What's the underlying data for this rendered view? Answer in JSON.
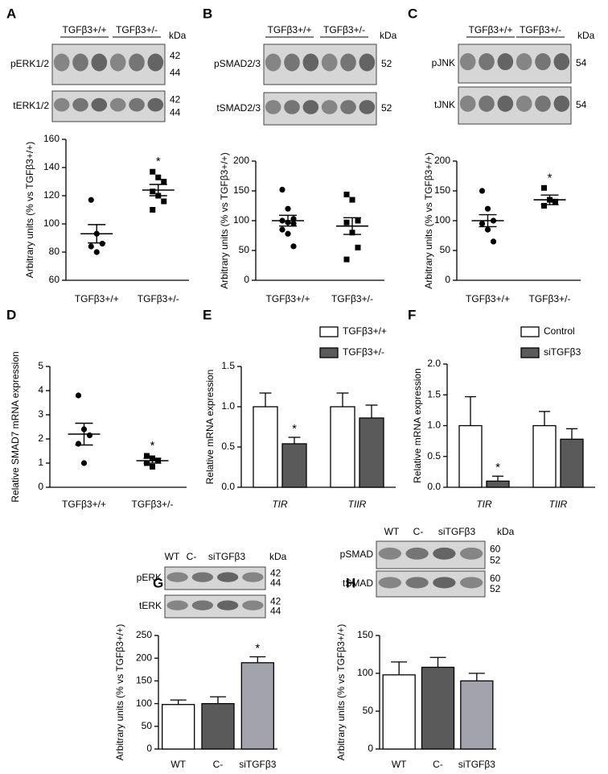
{
  "chart_data": [
    {
      "letter": "A",
      "type": "dot",
      "blot": {
        "groups": [
          "TGFβ3+/+",
          "TGFβ3+/-"
        ],
        "unit": "kDa",
        "rows": [
          {
            "label": "pERK1/2",
            "sizes": [
              42,
              44
            ]
          },
          {
            "label": "tERK1/2",
            "sizes": [
              42,
              44
            ]
          }
        ]
      },
      "ylabel": "Arbitrary units (% vs TGFβ3+/+)",
      "ylim": [
        60,
        160
      ],
      "yticks": [
        60,
        80,
        100,
        120,
        140,
        160
      ],
      "categories": [
        "TGFβ3+/+",
        "TGFβ3+/-"
      ],
      "groups": [
        {
          "marker": "circle",
          "values": [
            117,
            93,
            86,
            84,
            80
          ],
          "mean": 93,
          "sem": 6.5
        },
        {
          "marker": "square",
          "values": [
            137,
            133,
            130,
            123,
            120,
            116,
            110
          ],
          "mean": 124,
          "sem": 4
        }
      ],
      "marks": [
        null,
        "*"
      ]
    },
    {
      "letter": "B",
      "type": "dot",
      "blot": {
        "groups": [
          "TGFβ3+/+",
          "TGFβ3+/-"
        ],
        "unit": "kDa",
        "rows": [
          {
            "label": "pSMAD2/3",
            "sizes": [
              52
            ]
          },
          {
            "label": "tSMAD2/3",
            "sizes": [
              52
            ]
          }
        ]
      },
      "ylabel": "Arbitrary units (% vs TGFβ3+/+)",
      "ylim": [
        0,
        200
      ],
      "yticks": [
        0,
        50,
        100,
        150,
        200
      ],
      "categories": [
        "TGFβ3+/+",
        "TGFβ3+/-"
      ],
      "groups": [
        {
          "marker": "circle",
          "values": [
            152,
            120,
            103,
            100,
            97,
            95,
            85,
            78,
            57
          ],
          "mean": 100,
          "sem": 9
        },
        {
          "marker": "square",
          "values": [
            144,
            135,
            100,
            97,
            80,
            55,
            35
          ],
          "mean": 91,
          "sem": 14
        }
      ],
      "marks": [
        null,
        null
      ]
    },
    {
      "letter": "C",
      "type": "dot",
      "blot": {
        "groups": [
          "TGFβ3+/+",
          "TGFβ3+/-"
        ],
        "unit": "kDa",
        "rows": [
          {
            "label": "pJNK",
            "sizes": [
              54
            ]
          },
          {
            "label": "tJNK",
            "sizes": [
              54
            ]
          }
        ]
      },
      "ylabel": "Arbitrary units (% vs TGFβ3+/+)",
      "ylim": [
        0,
        200
      ],
      "yticks": [
        0,
        50,
        100,
        150,
        200
      ],
      "categories": [
        "TGFβ3+/+",
        "TGFβ3+/-"
      ],
      "groups": [
        {
          "marker": "circle",
          "values": [
            150,
            120,
            100,
            95,
            85,
            65
          ],
          "mean": 100,
          "sem": 10
        },
        {
          "marker": "square",
          "values": [
            155,
            135,
            132,
            125
          ],
          "mean": 135,
          "sem": 8
        }
      ],
      "marks": [
        null,
        "*"
      ]
    },
    {
      "letter": "D",
      "type": "dot",
      "ylabel": "Relative SMAD7 mRNA expression",
      "ylim": [
        0,
        5
      ],
      "yticks": [
        0,
        1,
        2,
        3,
        4,
        5
      ],
      "categories": [
        "TGFβ3+/+",
        "TGFβ3+/-"
      ],
      "groups": [
        {
          "marker": "circle",
          "values": [
            3.8,
            2.4,
            2.15,
            1.8,
            1.0
          ],
          "mean": 2.2,
          "sem": 0.45
        },
        {
          "marker": "square",
          "values": [
            1.3,
            1.2,
            1.1,
            1.0,
            0.85
          ],
          "mean": 1.1,
          "sem": 0.1
        }
      ],
      "marks": [
        null,
        "*"
      ]
    },
    {
      "letter": "E",
      "type": "bar",
      "italic_categories": true,
      "ylabel": "Relative mRNA expression",
      "ylim": [
        0,
        1.5
      ],
      "yticks": [
        {
          "value": 0,
          "label": "0.0"
        },
        0.5,
        {
          "value": 1,
          "label": "1.0"
        },
        1.5
      ],
      "categories": [
        "TIR",
        "TIIR"
      ],
      "series": [
        {
          "name": "TGFβ3+/+",
          "color": "#ffffff",
          "values": [
            1.0,
            1.0
          ],
          "errors": [
            0.17,
            0.17
          ],
          "marks": [
            null,
            null
          ]
        },
        {
          "name": "TGFβ3+/-",
          "color": "#5a5a5a",
          "values": [
            0.54,
            0.86
          ],
          "errors": [
            0.08,
            0.16
          ],
          "marks": [
            "*",
            null
          ]
        }
      ]
    },
    {
      "letter": "F",
      "type": "bar",
      "italic_categories": true,
      "ylabel": "Relative mRNA expression",
      "ylim": [
        0,
        2
      ],
      "yticks": [
        {
          "value": 0,
          "label": "0.0"
        },
        0.5,
        {
          "value": 1,
          "label": "1.0"
        },
        1.5,
        {
          "value": 2,
          "label": "2.0"
        }
      ],
      "categories": [
        "TIR",
        "TIIR"
      ],
      "series": [
        {
          "name": "Control",
          "color": "#ffffff",
          "values": [
            1.0,
            1.0
          ],
          "errors": [
            0.47,
            0.23
          ],
          "marks": [
            null,
            null
          ]
        },
        {
          "name": "siTGFβ3",
          "color": "#5a5a5a",
          "values": [
            0.1,
            0.78
          ],
          "errors": [
            0.08,
            0.17
          ],
          "marks": [
            "*",
            null
          ]
        }
      ]
    },
    {
      "letter": "G",
      "type": "bar",
      "blot": {
        "groups": [
          "WT",
          "C-",
          "siTGFβ3"
        ],
        "unit": "kDa",
        "rows": [
          {
            "label": "pERK",
            "sizes": [
              42,
              44
            ]
          },
          {
            "label": "tERK",
            "sizes": [
              42,
              44
            ]
          }
        ]
      },
      "ylabel": "Arbitrary units (% vs TGFβ3+/+)",
      "ylim": [
        0,
        250
      ],
      "yticks": [
        0,
        50,
        100,
        150,
        200,
        250
      ],
      "categories": [
        "WT",
        "C-",
        "siTGFβ3"
      ],
      "series": [
        {
          "colors": [
            "#ffffff",
            "#5a5a5a",
            "#a3a3ab"
          ],
          "values": [
            98,
            100,
            190
          ],
          "errors": [
            10,
            15,
            13
          ],
          "marks": [
            null,
            null,
            "*"
          ]
        }
      ]
    },
    {
      "letter": "H",
      "type": "bar",
      "blot": {
        "groups": [
          "WT",
          "C-",
          "siTGFβ3"
        ],
        "unit": "kDa",
        "rows": [
          {
            "label": "pSMAD",
            "sizes": [
              60,
              52
            ]
          },
          {
            "label": "tSMAD",
            "sizes": [
              60,
              52
            ]
          }
        ]
      },
      "ylabel": "Arbitrary units (% vs TGFβ3+/+)",
      "ylim": [
        0,
        150
      ],
      "yticks": [
        0,
        50,
        100,
        150
      ],
      "categories": [
        "WT",
        "C-",
        "siTGFβ3"
      ],
      "series": [
        {
          "colors": [
            "#ffffff",
            "#5a5a5a",
            "#a3a3ab"
          ],
          "values": [
            98,
            108,
            90
          ],
          "errors": [
            17,
            13,
            10
          ],
          "marks": [
            null,
            null,
            null
          ]
        }
      ]
    }
  ]
}
